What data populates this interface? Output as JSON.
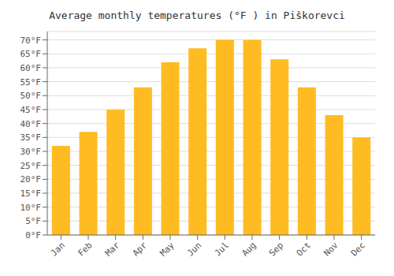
{
  "chart_data": {
    "type": "bar",
    "title": "Average monthly temperatures (°F ) in Piškorevci",
    "categories": [
      "Jan",
      "Feb",
      "Mar",
      "Apr",
      "May",
      "Jun",
      "Jul",
      "Aug",
      "Sep",
      "Oct",
      "Nov",
      "Dec"
    ],
    "values": [
      32,
      37,
      45,
      53,
      62,
      67,
      70,
      70,
      63,
      53,
      43,
      35
    ],
    "color": "#FFBB22",
    "ylim": [
      0,
      73
    ],
    "yticks": [
      {
        "value": 0,
        "label": "0°F"
      },
      {
        "value": 5,
        "label": "5°F"
      },
      {
        "value": 10,
        "label": "10°F"
      },
      {
        "value": 15,
        "label": "15°F"
      },
      {
        "value": 20,
        "label": "20°F"
      },
      {
        "value": 25,
        "label": "25°F"
      },
      {
        "value": 30,
        "label": "30°F"
      },
      {
        "value": 35,
        "label": "35°F"
      },
      {
        "value": 40,
        "label": "40°F"
      },
      {
        "value": 45,
        "label": "45°F"
      },
      {
        "value": 50,
        "label": "50°F"
      },
      {
        "value": 55,
        "label": "55°F"
      },
      {
        "value": 60,
        "label": "60°F"
      },
      {
        "value": 65,
        "label": "65°F"
      },
      {
        "value": 70,
        "label": "70°F"
      }
    ],
    "grid": true
  }
}
